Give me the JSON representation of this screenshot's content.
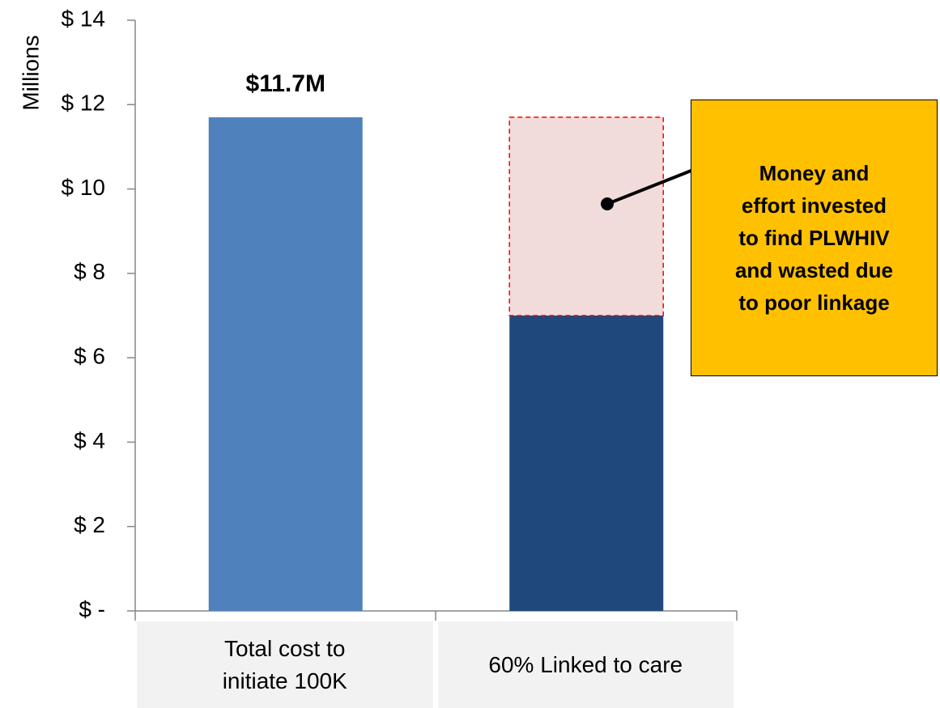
{
  "chart_data": {
    "type": "stacked_bar",
    "ylabel": "Millions",
    "categories": [
      "Total cost to\ninitiate 100K",
      "60% Linked to care"
    ],
    "series": [
      {
        "colors": [
          "#4f81bd",
          "#1f497d"
        ],
        "values": [
          11.7,
          7.0
        ],
        "value_labels": [
          "$11.7M",
          null
        ]
      },
      {
        "color": "#f2dcdb",
        "edge_color": "#ff0000",
        "values": [
          null,
          4.7
        ]
      }
    ],
    "ylim": [
      0,
      14
    ],
    "yticks": [
      {
        "value": 0,
        "label": "$ -"
      },
      {
        "value": 2,
        "label": "$ 2"
      },
      {
        "value": 4,
        "label": "$ 4"
      },
      {
        "value": 6,
        "label": "$ 6"
      },
      {
        "value": 8,
        "label": "$ 8"
      },
      {
        "value": 10,
        "label": "$ 10"
      },
      {
        "value": 12,
        "label": "$ 12"
      },
      {
        "value": 14,
        "label": "$ 14"
      }
    ],
    "annotation": {
      "text": "Money and\neffort invested\nto find PLWHIV\nand wasted due\nto poor linkage"
    }
  }
}
